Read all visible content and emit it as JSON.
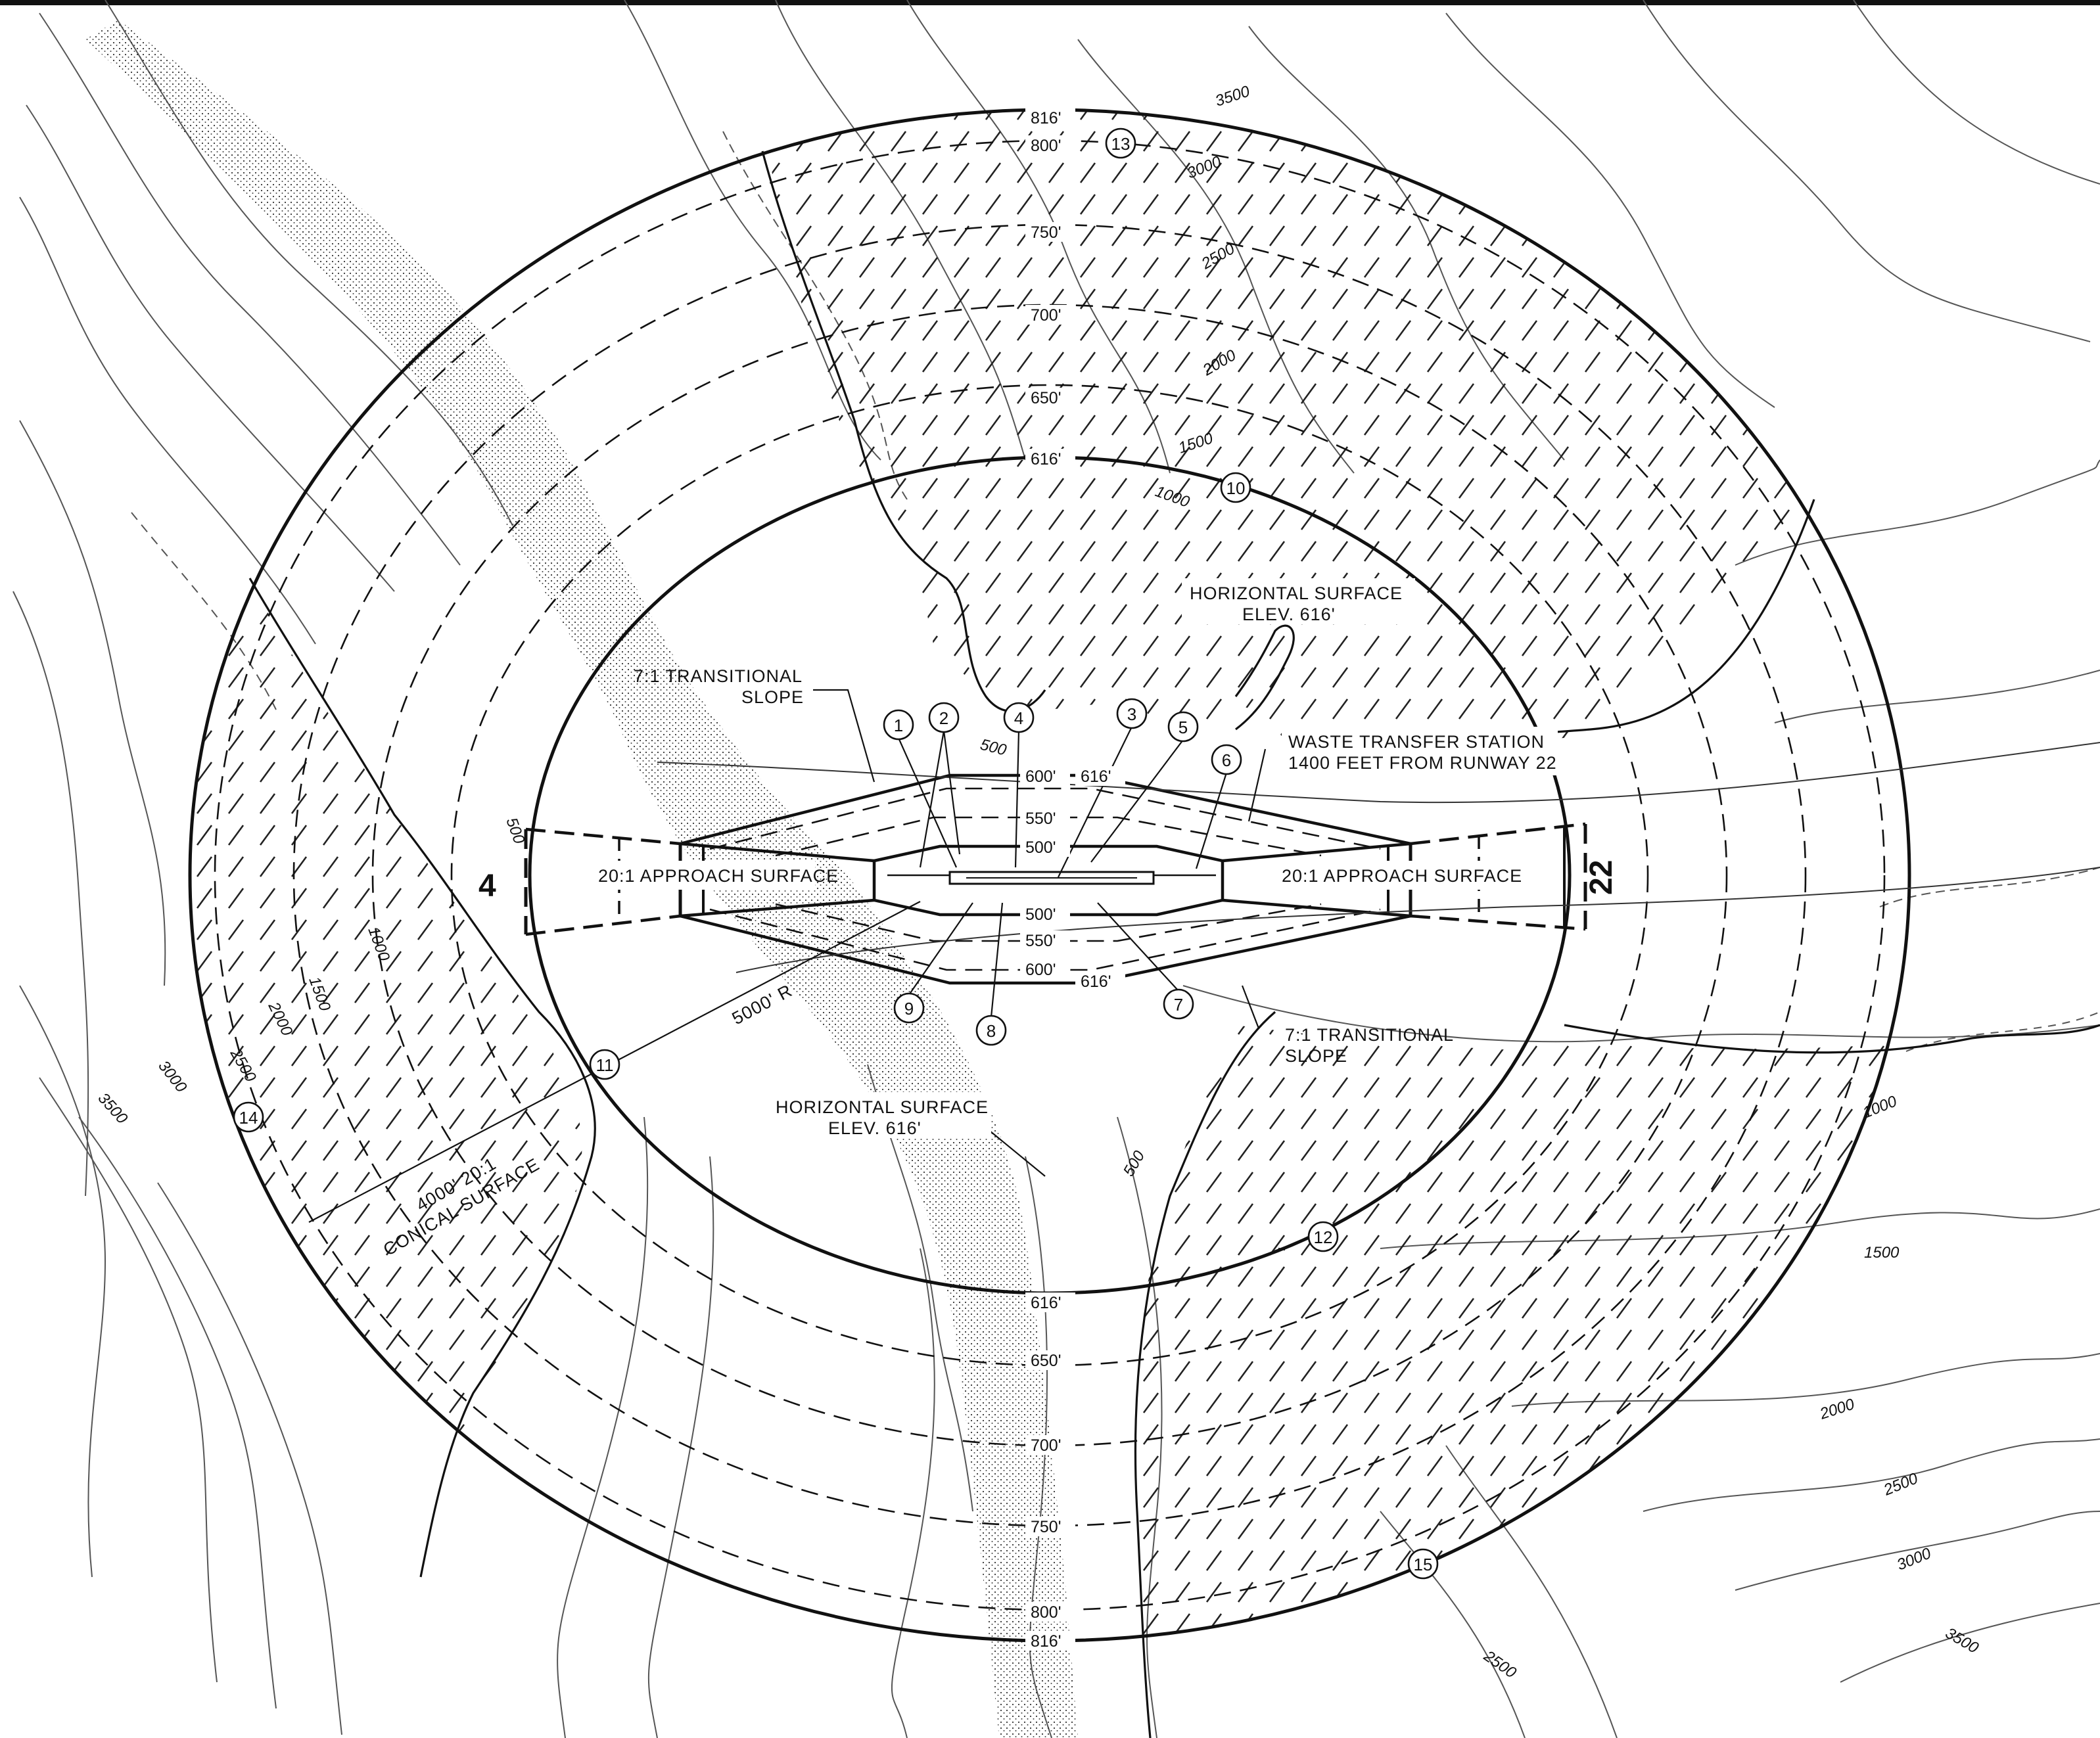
{
  "runway_ends": {
    "rwy_4": "4",
    "rwy_22": "22"
  },
  "horizontal_surface_north": {
    "line1": "HORIZONTAL SURFACE",
    "line2": "ELEV. 616'"
  },
  "horizontal_surface_south": {
    "line1": "HORIZONTAL SURFACE",
    "line2": "ELEV. 616'"
  },
  "transitional_north": {
    "line1": "7:1 TRANSITIONAL",
    "line2": "SLOPE"
  },
  "transitional_south": {
    "line1": "7:1 TRANSITIONAL",
    "line2": "SLOPE"
  },
  "approach_west": "20:1 APPROACH SURFACE",
  "approach_east": "20:1 APPROACH SURFACE",
  "waste_station": {
    "line1": "WASTE TRANSFER STATION",
    "line2": "1400 FEET FROM RUNWAY 22"
  },
  "radius_label": "5000' R",
  "conical": {
    "line1": "4000' 20:1",
    "line2": "CONICAL SURFACE"
  },
  "elevations": {
    "e816_top": "816'",
    "e800_top": "800'",
    "e750_top": "750'",
    "e700_top": "700'",
    "e650_top": "650'",
    "e616_top": "616'",
    "e616_bot": "616'",
    "e650_bot": "650'",
    "e700_bot": "700'",
    "e750_bot": "750'",
    "e800_bot": "800'",
    "e816_bot": "816'",
    "t600_top": "600'",
    "t616_top": "616'",
    "t550_top": "550'",
    "t500_top": "500'",
    "t500_bot": "500'",
    "t550_bot": "550'",
    "t600_bot": "600'",
    "t616_bot": "616'"
  },
  "topo_labels": {
    "c3500_n": "3500",
    "c3000_n": "3000",
    "c2500_n": "2500",
    "c2000_n": "2000",
    "c1500_n": "1500",
    "c1000_n": "1000",
    "c500_n": "500",
    "c500_w": "500",
    "c1000_w": "1000",
    "c1500_w": "1500",
    "c2000_w": "2000",
    "c2500_w": "2500",
    "c3000_w": "3000",
    "c3500_w": "3500",
    "c500_s": "500",
    "c1000_e": "1000",
    "c1500_e": "1500",
    "c2000_e": "2000",
    "c2500_e": "2500",
    "c3000_e": "3000",
    "c3500_e": "3500",
    "c2500_s": "2500"
  },
  "markers": [
    "1",
    "2",
    "3",
    "4",
    "5",
    "6",
    "7",
    "8",
    "9",
    "10",
    "11",
    "12",
    "13",
    "14",
    "15"
  ]
}
